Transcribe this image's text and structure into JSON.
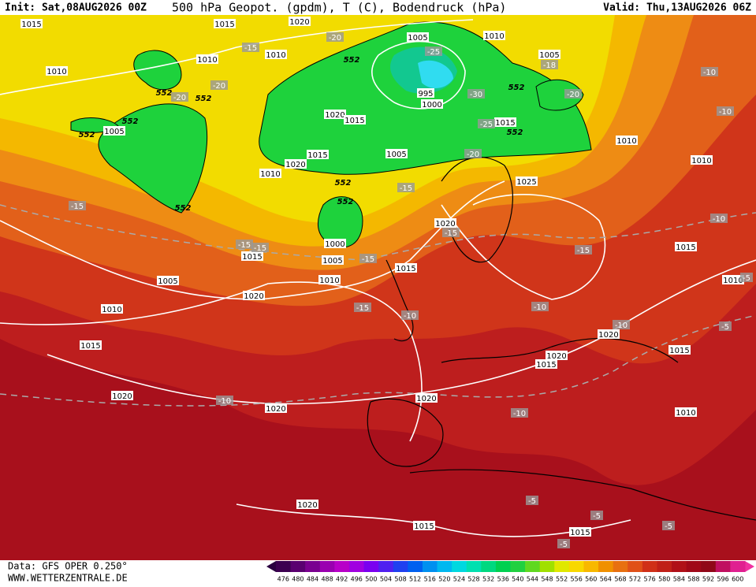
{
  "header": {
    "init": "Init: Sat,08AUG2026 00Z",
    "title": "500 hPa Geopot. (gpdm), T (C), Bodendruck (hPa)",
    "valid": "Valid: Thu,13AUG2026 06Z"
  },
  "footer": {
    "data": "Data: GFS OPER 0.250°",
    "site": "WWW.WETTERZENTRALE.DE"
  },
  "colorbar": {
    "ticks": [
      476,
      480,
      484,
      488,
      492,
      496,
      500,
      504,
      508,
      512,
      516,
      520,
      524,
      528,
      532,
      536,
      540,
      544,
      548,
      552,
      556,
      560,
      564,
      568,
      572,
      576,
      580,
      584,
      588,
      592,
      596,
      600
    ]
  },
  "map_labels": {
    "pressure": [
      "1015",
      "1020",
      "1015",
      "1010",
      "1010",
      "1010",
      "1005",
      "1010",
      "1005",
      "995",
      "1000",
      "1020",
      "1015",
      "1005",
      "1015",
      "1020",
      "1010",
      "1005",
      "1015",
      "1010",
      "1010",
      "1025",
      "1020",
      "1015",
      "1000",
      "1005",
      "1010",
      "1015",
      "1005",
      "1020",
      "1010",
      "1015",
      "1020",
      "1020",
      "1020",
      "1020",
      "1015",
      "1020",
      "1015",
      "1015",
      "1010",
      "1010",
      "1020",
      "1015",
      "1015"
    ],
    "temperature": [
      "-20",
      "-15",
      "-20",
      "-20",
      "-25",
      "-30",
      "-25",
      "-20",
      "-18",
      "-20",
      "-15",
      "-15",
      "-15",
      "-15",
      "-15",
      "-15",
      "-15",
      "-15",
      "-10",
      "-10",
      "-10",
      "-10",
      "-10",
      "-10",
      "-10",
      "-10",
      "-5",
      "-5",
      "-5",
      "-5",
      "-5",
      "-5"
    ],
    "height": [
      "552",
      "552",
      "552",
      "552",
      "552",
      "552",
      "552",
      "552",
      "552",
      "552"
    ]
  }
}
